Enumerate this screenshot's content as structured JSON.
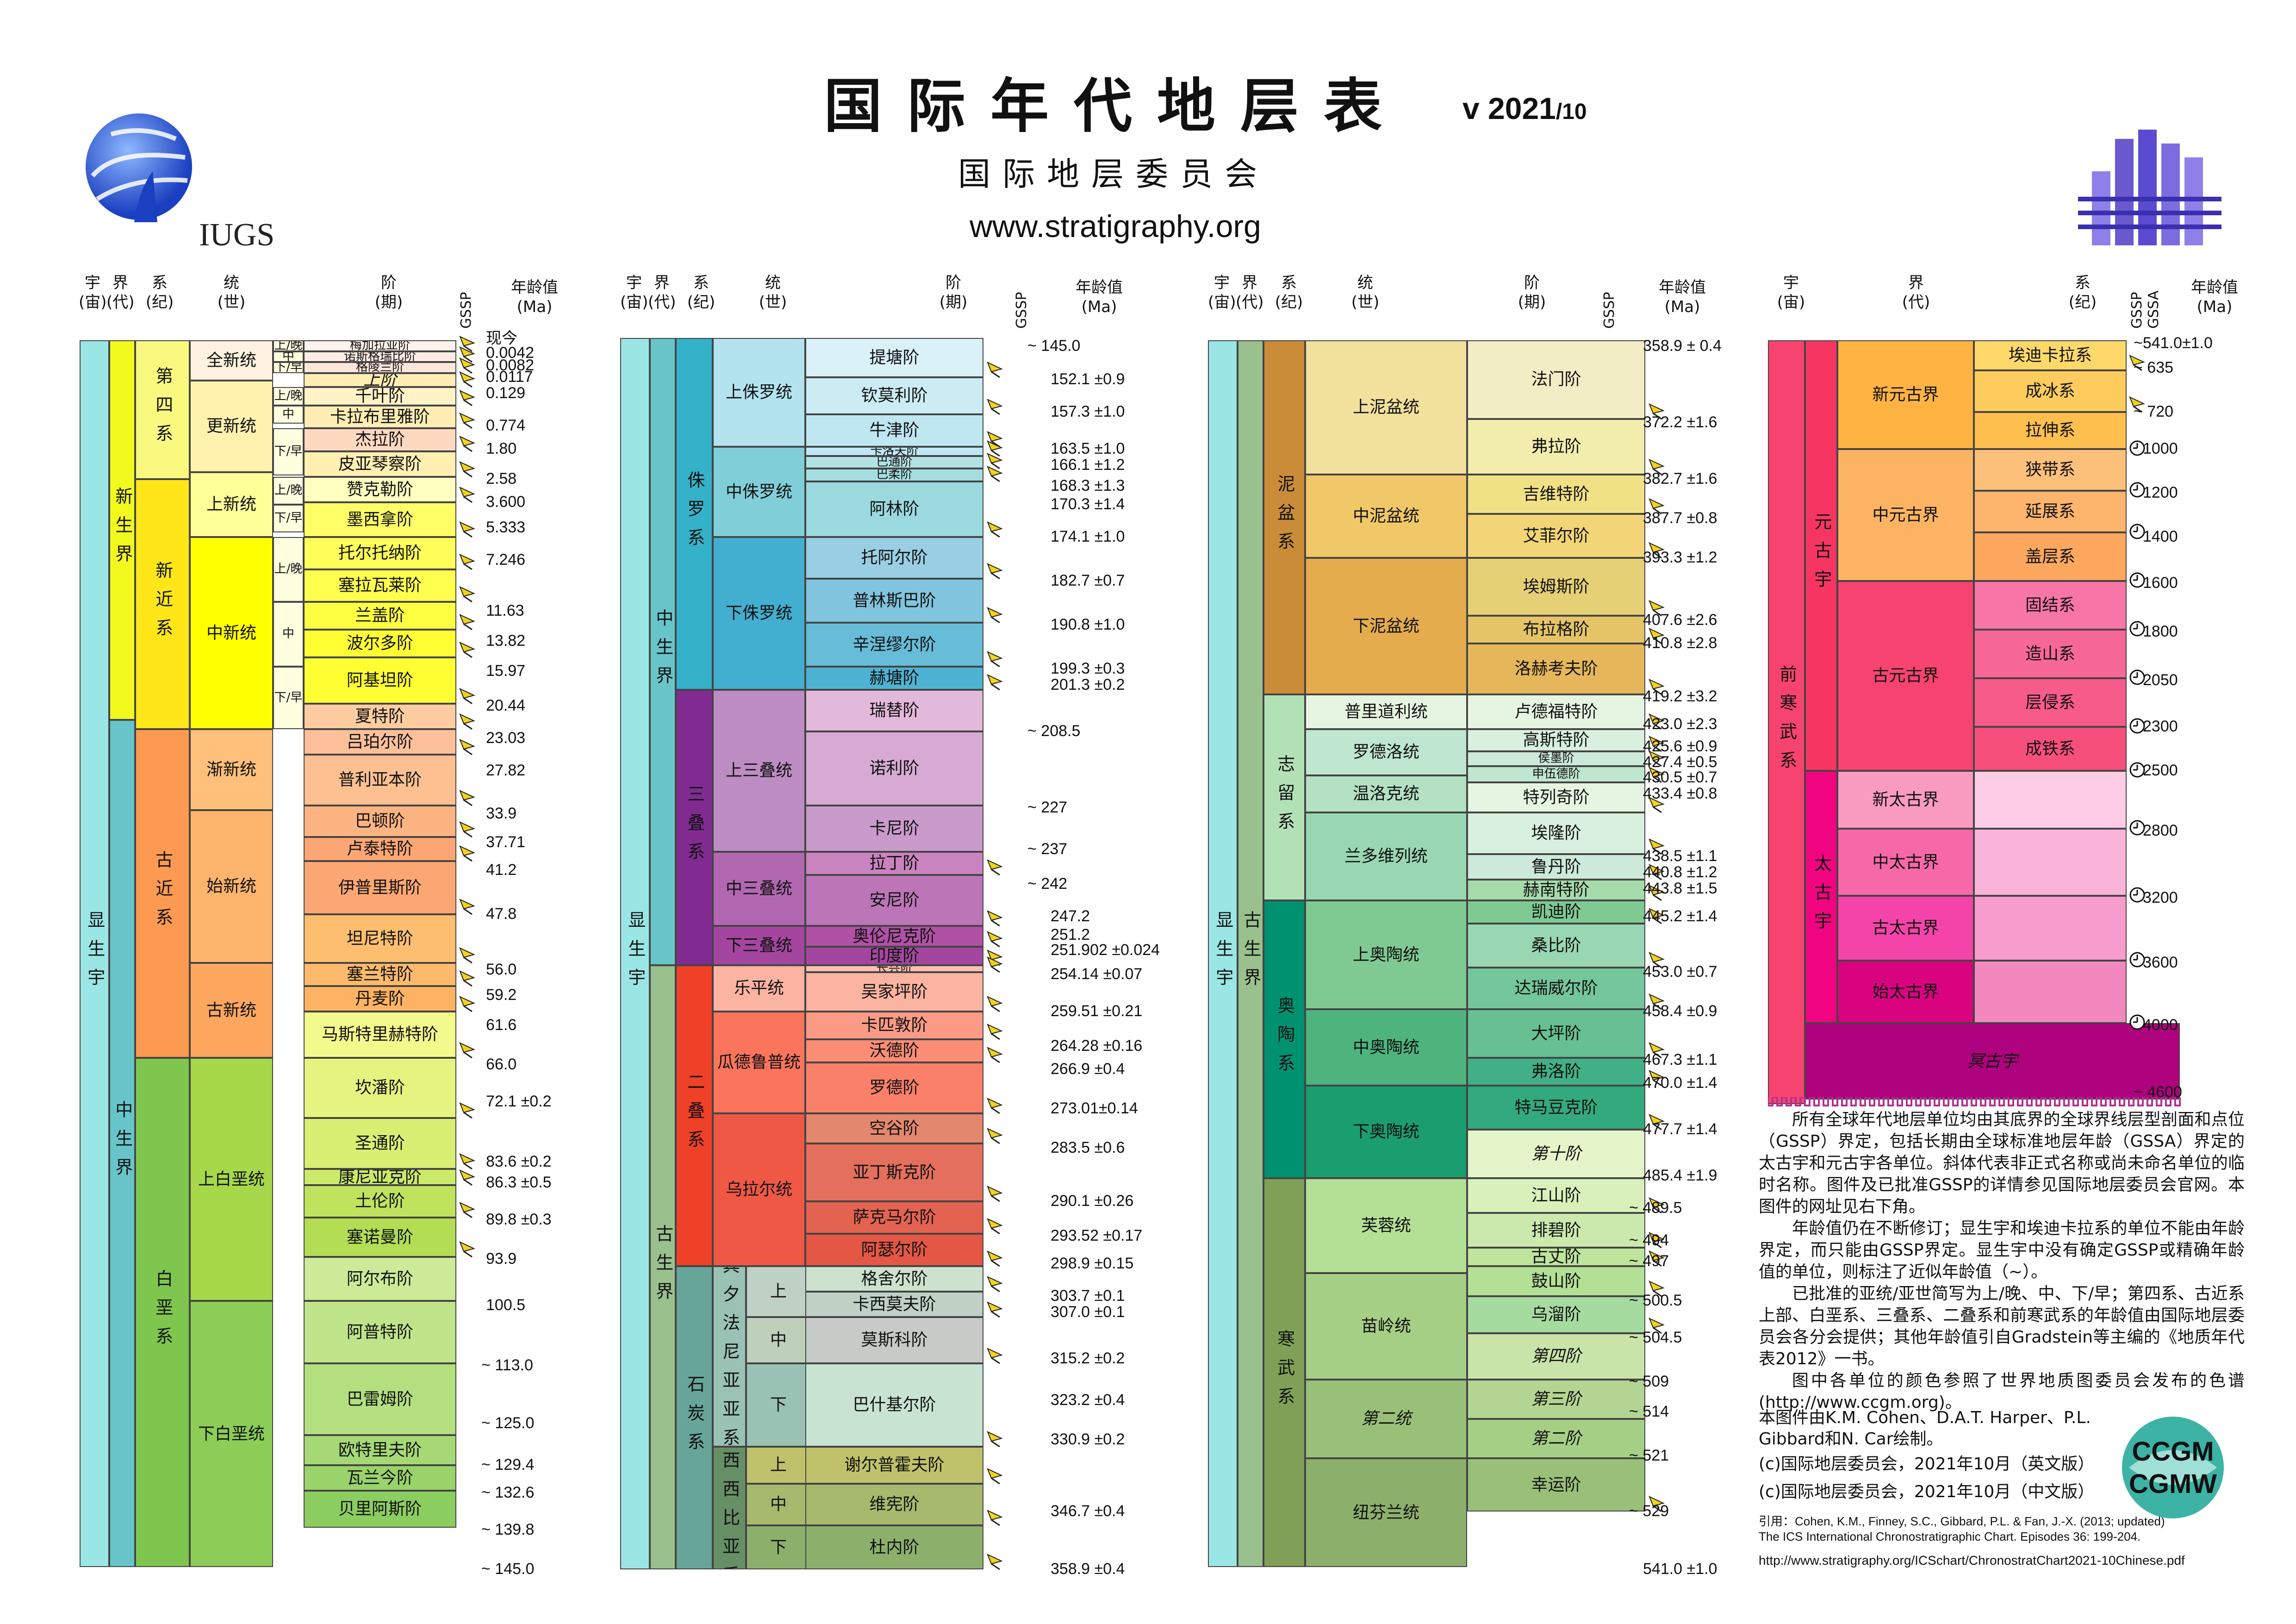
{
  "header": {
    "title": "国际年代地层表",
    "version_main": "v 2021",
    "version_sub": "/10",
    "subtitle": "国际地层委员会",
    "url": "www.stratigraphy.org",
    "logo_left_text": "IUGS"
  },
  "column_headers": {
    "eon": "宇\n(宙)",
    "era": "界\n(代)",
    "system": "系\n(纪)",
    "series": "统\n(世)",
    "stage": "阶\n(期)",
    "gssp": "GSSP",
    "gssa": "GSSA",
    "age": "年龄值\n(Ma)",
    "eon4": "宇\n(宙)",
    "era4": "界\n(代)",
    "system4": "系\n(纪)"
  },
  "colors": {
    "phanerozoic": "#9ae6e4",
    "cenozoic": "#f2f91d",
    "mesozoic": "#67c5ca",
    "paleozoic": "#99c08d",
    "quaternary": "#f9f97f",
    "neogene": "#ffe619",
    "paleogene": "#fd9a52",
    "cretaceous": "#7fc64e",
    "jurassic": "#34b2c9",
    "triassic": "#812b92",
    "permian": "#f04028",
    "carboniferous": "#67a599",
    "devonian": "#cb8c37",
    "silurian": "#b3e1b6",
    "ordovician": "#009270",
    "cambrian": "#7fa056",
    "precambrian": "#f74370",
    "proterozoic": "#f73563",
    "archean": "#f0047f",
    "hadean": "#ae027e"
  },
  "chart_data": {
    "type": "table",
    "title": "国际年代地层表",
    "columns": [
      {
        "eon": "显生宇",
        "eras": [
          {
            "name": "新生界"
          },
          {
            "name": "中生界"
          }
        ],
        "systems": [
          {
            "name": "第四系"
          },
          {
            "name": "新近系"
          },
          {
            "name": "古近系"
          },
          {
            "name": "白垩系"
          }
        ],
        "series": [
          "全新统",
          "更新统",
          "上新统",
          "中新统",
          "渐新统",
          "始新统",
          "古新统",
          "上白垩统",
          "下白垩统"
        ],
        "substage_labels": [
          "上/晚",
          "中",
          "下/早",
          "上/晚",
          "中",
          "下/早",
          "上/晚",
          "下/早",
          "上/晚",
          "中",
          "下/早"
        ],
        "stages": [
          "梅加拉亚阶",
          "诺斯格瑞比阶",
          "格陵兰阶",
          "上阶",
          "千叶阶",
          "卡拉布里雅阶",
          "杰拉阶",
          "皮亚琴察阶",
          "赞克勒阶",
          "墨西拿阶",
          "托尔托纳阶",
          "塞拉瓦莱阶",
          "兰盖阶",
          "波尔多阶",
          "阿基坦阶",
          "夏特阶",
          "吕珀尔阶",
          "普利亚本阶",
          "巴顿阶",
          "卢泰特阶",
          "伊普里斯阶",
          "坦尼特阶",
          "塞兰特阶",
          "丹麦阶",
          "马斯特里赫特阶",
          "坎潘阶",
          "圣通阶",
          "康尼亚克阶",
          "土伦阶",
          "塞诺曼阶",
          "阿尔布阶",
          "阿普特阶",
          "巴雷姆阶",
          "欧特里夫阶",
          "瓦兰今阶",
          "贝里阿斯阶"
        ],
        "ages": [
          "现今",
          "0.0042",
          "0.0082",
          "0.0117",
          "0.129",
          "0.774",
          "1.80",
          "2.58",
          "3.600",
          "5.333",
          "7.246",
          "11.63",
          "13.82",
          "15.97",
          "20.44",
          "23.03",
          "27.82",
          "33.9",
          "37.71",
          "41.2",
          "47.8",
          "56.0",
          "59.2",
          "61.6",
          "66.0",
          "72.1 ±0.2",
          "83.6 ±0.2",
          "86.3 ±0.5",
          "89.8 ±0.3",
          "93.9",
          "100.5",
          "~ 113.0",
          "~ 125.0",
          "~ 129.4",
          "~ 132.6",
          "~ 139.8",
          "~ 145.0"
        ]
      },
      {
        "eon": "显生宇",
        "eras": [
          {
            "name": "中生界"
          },
          {
            "name": "古生界"
          }
        ],
        "systems": [
          {
            "name": "侏罗系"
          },
          {
            "name": "三叠系"
          },
          {
            "name": "二叠系"
          },
          {
            "name": "石炭系"
          }
        ],
        "subsystems": [
          "宾夕法尼亚亚系",
          "密西西比亚系"
        ],
        "series": [
          "上侏罗统",
          "中侏罗统",
          "下侏罗统",
          "上三叠统",
          "中三叠统",
          "下三叠统",
          "乐平统",
          "瓜德鲁普统",
          "乌拉尔统",
          "上",
          "中",
          "下",
          "上",
          "中",
          "下"
        ],
        "stages": [
          "提塘阶",
          "钦莫利阶",
          "牛津阶",
          "卡洛夫阶",
          "巴通阶",
          "巴柔阶",
          "阿林阶",
          "托阿尔阶",
          "普林斯巴阶",
          "辛涅缪尔阶",
          "赫塘阶",
          "瑞替阶",
          "诺利阶",
          "卡尼阶",
          "拉丁阶",
          "安尼阶",
          "奥伦尼克阶",
          "印度阶",
          "长兴阶",
          "吴家坪阶",
          "卡匹敦阶",
          "沃德阶",
          "罗德阶",
          "空谷阶",
          "亚丁斯克阶",
          "萨克马尔阶",
          "阿瑟尔阶",
          "格舍尔阶",
          "卡西莫夫阶",
          "莫斯科阶",
          "巴什基尔阶",
          "谢尔普霍夫阶",
          "维宪阶",
          "杜内阶"
        ],
        "ages": [
          "~ 145.0",
          "152.1 ±0.9",
          "157.3 ±1.0",
          "163.5 ±1.0",
          "166.1 ±1.2",
          "168.3 ±1.3",
          "170.3 ±1.4",
          "174.1 ±1.0",
          "182.7 ±0.7",
          "190.8 ±1.0",
          "199.3 ±0.3",
          "201.3 ±0.2",
          "~ 208.5",
          "~ 227",
          "~ 237",
          "~ 242",
          "247.2",
          "251.2",
          "251.902 ±0.024",
          "254.14 ±0.07",
          "259.51 ±0.21",
          "264.28 ±0.16",
          "266.9 ±0.4",
          "273.01±0.14",
          "283.5 ±0.6",
          "290.1 ±0.26",
          "293.52 ±0.17",
          "298.9 ±0.15",
          "303.7 ±0.1",
          "307.0 ±0.1",
          "315.2 ±0.2",
          "323.2 ±0.4",
          "330.9 ±0.2",
          "346.7 ±0.4",
          "358.9 ±0.4"
        ]
      },
      {
        "eon": "显生宇",
        "eras": [
          {
            "name": "古生界"
          }
        ],
        "systems": [
          {
            "name": "泥盆系"
          },
          {
            "name": "志留系"
          },
          {
            "name": "奥陶系"
          },
          {
            "name": "寒武系"
          }
        ],
        "series": [
          "上泥盆统",
          "中泥盆统",
          "下泥盆统",
          "普里道利统",
          "罗德洛统",
          "温洛克统",
          "兰多维列统",
          "上奥陶统",
          "中奥陶统",
          "下奥陶统",
          "芙蓉统",
          "苗岭统",
          "第二统",
          "纽芬兰统"
        ],
        "stages": [
          "法门阶",
          "弗拉阶",
          "吉维特阶",
          "艾菲尔阶",
          "埃姆斯阶",
          "布拉格阶",
          "洛赫考夫阶",
          "卢德福特阶",
          "高斯特阶",
          "侯墨阶",
          "申伍德阶",
          "特列奇阶",
          "埃隆阶",
          "鲁丹阶",
          "赫南特阶",
          "凯迪阶",
          "桑比阶",
          "达瑞威尔阶",
          "大坪阶",
          "弗洛阶",
          "特马豆克阶",
          "第十阶",
          "江山阶",
          "排碧阶",
          "古丈阶",
          "鼓山阶",
          "乌溜阶",
          "第四阶",
          "第三阶",
          "第二阶",
          "幸运阶"
        ],
        "ages": [
          "358.9 ± 0.4",
          "372.2 ±1.6",
          "382.7 ±1.6",
          "387.7 ±0.8",
          "393.3 ±1.2",
          "407.6 ±2.6",
          "410.8 ±2.8",
          "419.2 ±3.2",
          "423.0 ±2.3",
          "425.6 ±0.9",
          "427.4 ±0.5",
          "430.5 ±0.7",
          "433.4 ±0.8",
          "438.5 ±1.1",
          "440.8 ±1.2",
          "443.8 ±1.5",
          "445.2 ±1.4",
          "453.0 ±0.7",
          "458.4 ±0.9",
          "467.3 ±1.1",
          "470.0 ±1.4",
          "477.7 ±1.4",
          "485.4 ±1.9",
          "~ 489.5",
          "~ 494",
          "~ 497",
          "~ 500.5",
          "~ 504.5",
          "~ 509",
          "~ 514",
          "~ 521",
          "~ 529",
          "541.0 ±1.0"
        ]
      },
      {
        "eon": "前寒武系",
        "eons": [
          "元古宇",
          "太古宇",
          "冥古宇"
        ],
        "eras": [
          "新元古界",
          "中元古界",
          "古元古界",
          "新太古界",
          "中太古界",
          "古太古界",
          "始太古界"
        ],
        "systems": [
          "埃迪卡拉系",
          "成冰系",
          "拉伸系",
          "狭带系",
          "延展系",
          "盖层系",
          "固结系",
          "造山系",
          "层侵系",
          "成铁系"
        ],
        "ages": [
          "~541.0±1.0",
          "~ 635",
          "~ 720",
          "1000",
          "1200",
          "1400",
          "1600",
          "1800",
          "2050",
          "2300",
          "2500",
          "2800",
          "3200",
          "3600",
          "4000",
          "~ 4600"
        ]
      }
    ]
  },
  "notes": {
    "p1": "所有全球年代地层单位均由其底界的全球界线层型剖面和点位（GSSP）界定，包括长期由全球标准地层年龄（GSSA）界定的太古宇和元古宇各单位。斜体代表非正式名称或尚未命名单位的临时名称。图件及已批准GSSP的详情参见国际地层委员会官网。本图件的网址见右下角。",
    "p2": "年龄值仍在不断修订；显生宇和埃迪卡拉系的单位不能由年龄界定，而只能由GSSP界定。显生宇中没有确定GSSP或精确年龄值的单位，则标注了近似年龄值（~）。",
    "p3": "已批准的亚统/亚世简写为上/晚、中、下/早；第四系、古近系上部、白垩系、三叠系、二叠系和前寒武系的年龄值由国际地层委员会各分会提供；其他年龄值引自Gradstein等主编的《地质年代表2012》一书。",
    "p4": "图中各单位的颜色参照了世界地质图委员会发布的色谱(http://www.ccgm.org)。",
    "credit1": "本图件由K.M. Cohen、D.A.T. Harper、P.L.",
    "credit2": "Gibbard和N. Car绘制。",
    "credit3": "(c)国际地层委员会，2021年10月（英文版）",
    "credit4": "(c)国际地层委员会，2021年10月（中文版）",
    "cite1": "引用：Cohen, K.M., Finney, S.C., Gibbard, P.L. & Fan, J.-X. (2013; updated)",
    "cite2": "The ICS International Chronostratigraphic Chart. Episodes 36: 199-204.",
    "foot": "http://www.stratigraphy.org/ICSchart/ChronostratChart2021-10Chinese.pdf",
    "ccgm_top": "CCGM",
    "ccgm_bottom": "CGMW"
  }
}
